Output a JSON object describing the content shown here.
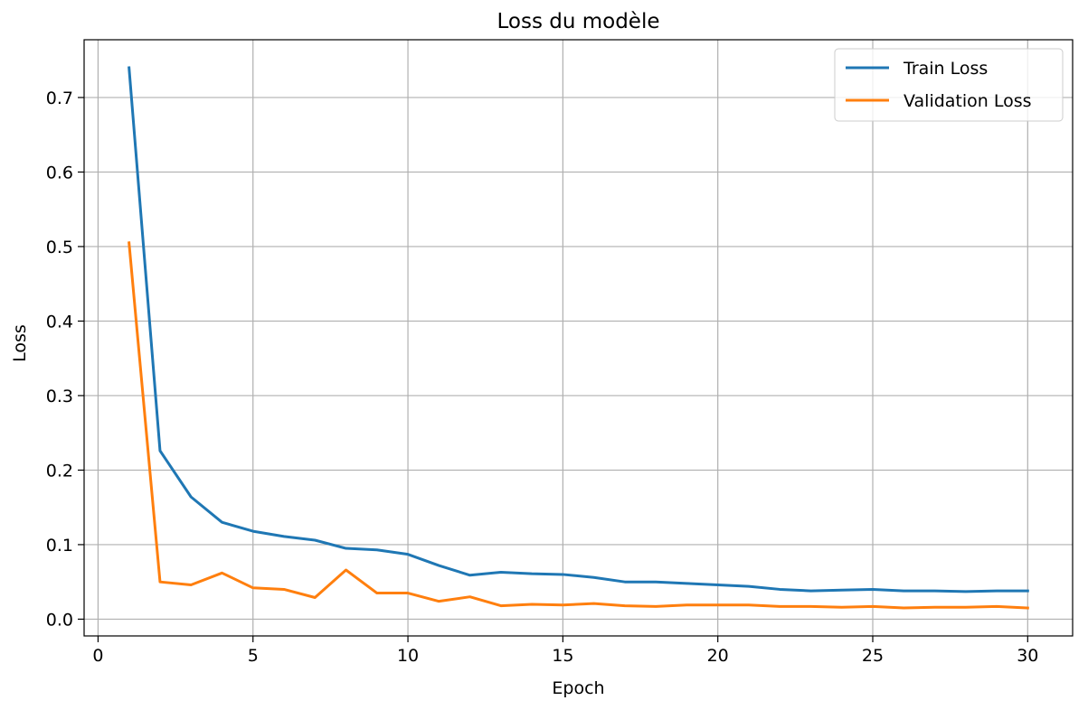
{
  "chart_data": {
    "type": "line",
    "title": "Loss du modèle",
    "xlabel": "Epoch",
    "ylabel": "Loss",
    "xlim": [
      -0.45,
      31.45
    ],
    "ylim": [
      -0.0225,
      0.7775
    ],
    "xticks": [
      0,
      5,
      10,
      15,
      20,
      25,
      30
    ],
    "yticks": [
      0.0,
      0.1,
      0.2,
      0.3,
      0.4,
      0.5,
      0.6,
      0.7
    ],
    "xtick_labels": [
      "0",
      "5",
      "10",
      "15",
      "20",
      "25",
      "30"
    ],
    "ytick_labels": [
      "0.0",
      "0.1",
      "0.2",
      "0.3",
      "0.4",
      "0.5",
      "0.6",
      "0.7"
    ],
    "grid": true,
    "legend_position": "top-right",
    "x": [
      1,
      2,
      3,
      4,
      5,
      6,
      7,
      8,
      9,
      10,
      11,
      12,
      13,
      14,
      15,
      16,
      17,
      18,
      19,
      20,
      21,
      22,
      23,
      24,
      25,
      26,
      27,
      28,
      29,
      30
    ],
    "series": [
      {
        "name": "Train Loss",
        "color": "#1f77b4",
        "values": [
          0.74,
          0.226,
          0.164,
          0.13,
          0.118,
          0.111,
          0.106,
          0.095,
          0.093,
          0.087,
          0.072,
          0.059,
          0.063,
          0.061,
          0.06,
          0.056,
          0.05,
          0.05,
          0.048,
          0.046,
          0.044,
          0.04,
          0.038,
          0.039,
          0.04,
          0.038,
          0.038,
          0.037,
          0.038,
          0.038
        ]
      },
      {
        "name": "Validation Loss",
        "color": "#ff7f0e",
        "values": [
          0.505,
          0.05,
          0.046,
          0.062,
          0.042,
          0.04,
          0.029,
          0.066,
          0.035,
          0.035,
          0.024,
          0.03,
          0.018,
          0.02,
          0.019,
          0.021,
          0.018,
          0.017,
          0.019,
          0.019,
          0.019,
          0.017,
          0.017,
          0.016,
          0.017,
          0.015,
          0.016,
          0.016,
          0.017,
          0.015
        ]
      }
    ]
  }
}
